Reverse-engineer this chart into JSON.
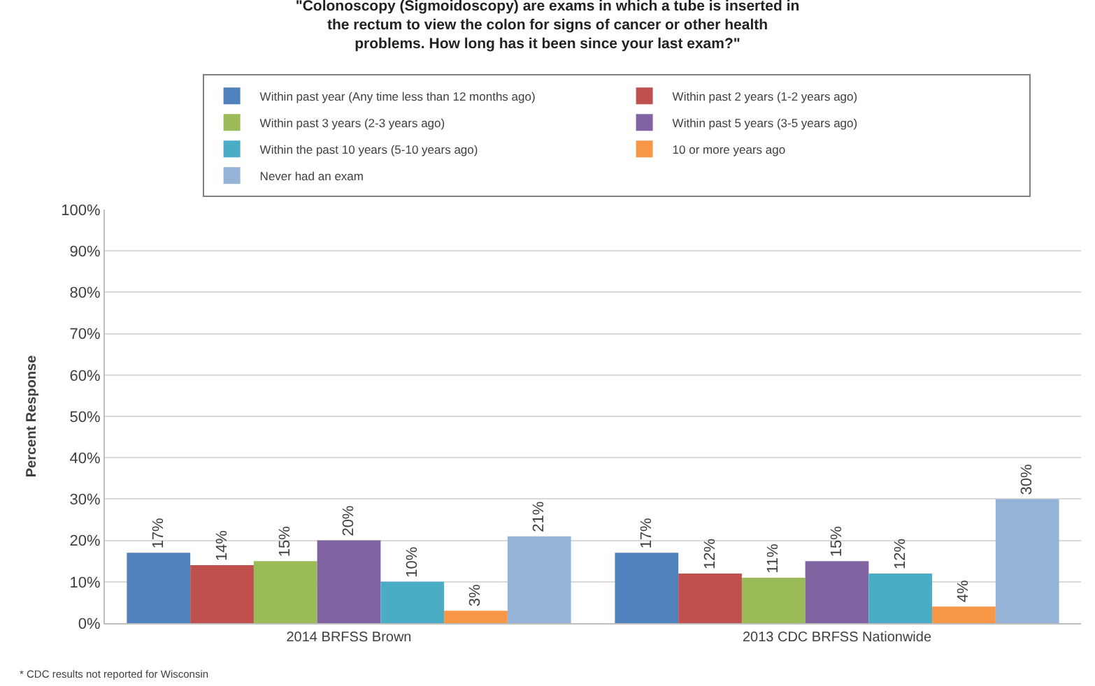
{
  "chart_data": {
    "type": "bar",
    "title": "\"Colonoscopy (Sigmoidoscopy) are exams in which a tube is inserted in the rectum to view the colon for signs of cancer or other health problems. How long has it been since your last exam?\"",
    "ylabel": "Percent Response",
    "categories": [
      "2014 BRFSS Brown",
      "2013 CDC BRFSS Nationwide"
    ],
    "series": [
      {
        "name": "Within past year (Any time less than 12 months ago)",
        "color": "#4f81bd",
        "values": [
          17,
          17
        ],
        "value_labels": [
          "17%",
          "17%"
        ]
      },
      {
        "name": "Within past 2 years (1-2 years ago)",
        "color": "#c0504d",
        "values": [
          14,
          12
        ],
        "value_labels": [
          "14%",
          "12%"
        ]
      },
      {
        "name": "Within past 3 years (2-3 years ago)",
        "color": "#9bbb59",
        "values": [
          15,
          11
        ],
        "value_labels": [
          "15%",
          "11%"
        ]
      },
      {
        "name": "Within past 5 years (3-5 years ago)",
        "color": "#8064a2",
        "values": [
          20,
          15
        ],
        "value_labels": [
          "20%",
          "15%"
        ]
      },
      {
        "name": "Within the past 10 years (5-10 years ago)",
        "color": "#4bacc6",
        "values": [
          10,
          12
        ],
        "value_labels": [
          "10%",
          "12%"
        ]
      },
      {
        "name": "10 or more years ago",
        "color": "#f79646",
        "values": [
          3,
          4
        ],
        "value_labels": [
          "3%",
          "4%"
        ]
      },
      {
        "name": "Never had an exam",
        "color": "#95b3d7",
        "values": [
          21,
          30
        ],
        "value_labels": [
          "21%",
          "30%"
        ]
      }
    ],
    "ylim": [
      0,
      100
    ],
    "yticks": [
      {
        "value": 0,
        "label": "0%"
      },
      {
        "value": 10,
        "label": "10%"
      },
      {
        "value": 20,
        "label": "20%"
      },
      {
        "value": 30,
        "label": "30%"
      },
      {
        "value": 40,
        "label": "40%"
      },
      {
        "value": 50,
        "label": "50%"
      },
      {
        "value": 60,
        "label": "60%"
      },
      {
        "value": 70,
        "label": "70%"
      },
      {
        "value": 80,
        "label": "80%"
      },
      {
        "value": 90,
        "label": "90%"
      },
      {
        "value": 100,
        "label": "100%"
      }
    ],
    "grid": "y",
    "legend": "top",
    "annotations": [
      "* CDC results not reported for Wisconsin"
    ]
  }
}
